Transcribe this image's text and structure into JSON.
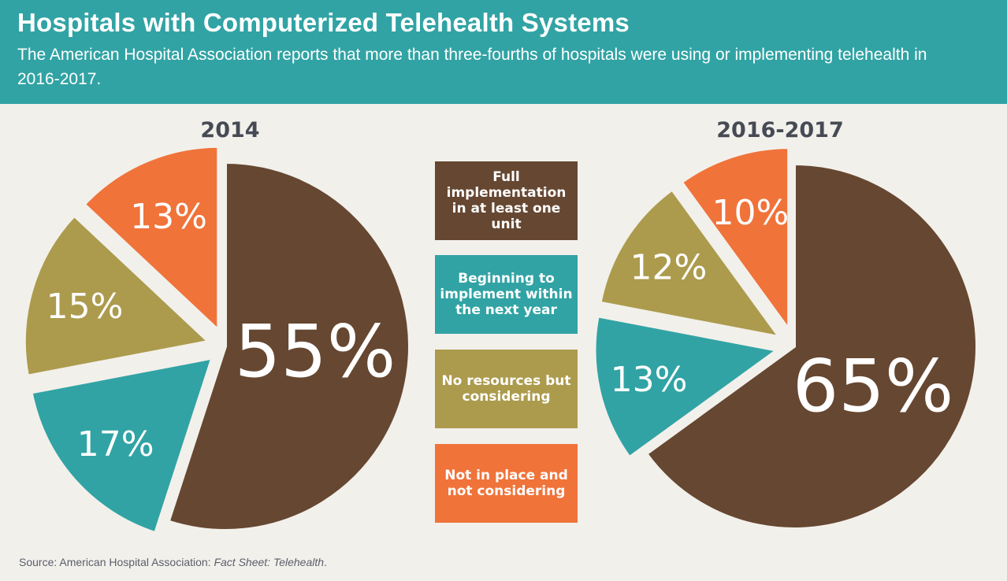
{
  "header": {
    "title": "Hospitals with Computerized Telehealth Systems",
    "subtitle": "The American Hospital Association reports that more than three-fourths of hospitals were using or implementing telehealth in 2016-2017."
  },
  "colors": {
    "header_bg": "#31A3A4",
    "page_bg": "#F2F0EB",
    "full": "#664731",
    "beginning": "#31A3A4",
    "considering": "#AC9B4D",
    "not_considering": "#F0733A"
  },
  "legend": [
    {
      "label": "Full implementation in at least one unit",
      "color": "#664731"
    },
    {
      "label": "Beginning to implement within the next year",
      "color": "#31A3A4"
    },
    {
      "label": "No resources but considering",
      "color": "#AC9B4D"
    },
    {
      "label": "Not in place and not considering",
      "color": "#F0733A"
    }
  ],
  "source": {
    "prefix": "Source: American Hospital Association: ",
    "title": "Fact Sheet: Telehealth",
    "suffix": "."
  },
  "chart_data": [
    {
      "type": "pie",
      "title": "2014",
      "categories": [
        "Full implementation in at least one unit",
        "Beginning to implement within the next year",
        "No resources but considering",
        "Not in place and not considering"
      ],
      "values": [
        55,
        17,
        15,
        13
      ],
      "labels": [
        "55%",
        "17%",
        "15%",
        "13%"
      ],
      "colors": [
        "#664731",
        "#31A3A4",
        "#AC9B4D",
        "#F0733A"
      ],
      "exploded": [
        false,
        true,
        true,
        true
      ],
      "start": "12 o'clock, clockwise"
    },
    {
      "type": "pie",
      "title": "2016-2017",
      "categories": [
        "Full implementation in at least one unit",
        "Beginning to implement within the next year",
        "No resources but considering",
        "Not in place and not considering"
      ],
      "values": [
        65,
        13,
        12,
        10
      ],
      "labels": [
        "65%",
        "13%",
        "12%",
        "10%"
      ],
      "colors": [
        "#664731",
        "#31A3A4",
        "#AC9B4D",
        "#F0733A"
      ],
      "exploded": [
        false,
        true,
        true,
        true
      ],
      "start": "12 o'clock, clockwise"
    }
  ]
}
